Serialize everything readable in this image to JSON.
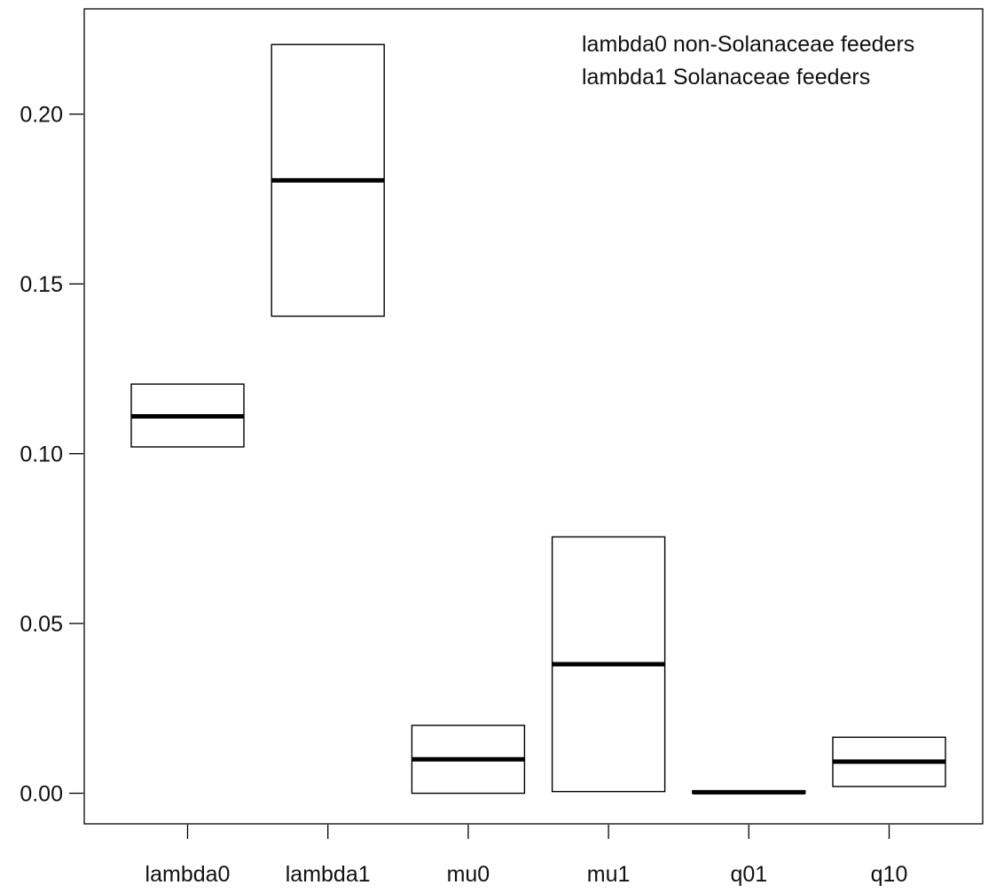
{
  "chart_data": {
    "type": "box",
    "title": "",
    "xlabel": "",
    "ylabel": "",
    "ylim": [
      -0.009,
      0.231
    ],
    "yticks": [
      0.0,
      0.05,
      0.1,
      0.15,
      0.2
    ],
    "ytick_labels": [
      "0.00",
      "0.05",
      "0.10",
      "0.15",
      "0.20"
    ],
    "categories": [
      "lambda0",
      "lambda1",
      "mu0",
      "mu1",
      "q01",
      "q10"
    ],
    "boxes": [
      {
        "category": "lambda0",
        "low": 0.102,
        "median": 0.111,
        "high": 0.1205
      },
      {
        "category": "lambda1",
        "low": 0.1405,
        "median": 0.1805,
        "high": 0.2205
      },
      {
        "category": "mu0",
        "low": 0.0,
        "median": 0.01,
        "high": 0.02
      },
      {
        "category": "mu1",
        "low": 0.0005,
        "median": 0.038,
        "high": 0.0755
      },
      {
        "category": "q01",
        "low": 0.0,
        "median": 0.0003,
        "high": 0.0007
      },
      {
        "category": "q10",
        "low": 0.002,
        "median": 0.0093,
        "high": 0.0165
      }
    ],
    "legend_text": [
      "lambda0 non-Solanaceae feeders",
      "lambda1 Solanaceae feeders"
    ],
    "legend_position": "top-right",
    "grid": false
  }
}
